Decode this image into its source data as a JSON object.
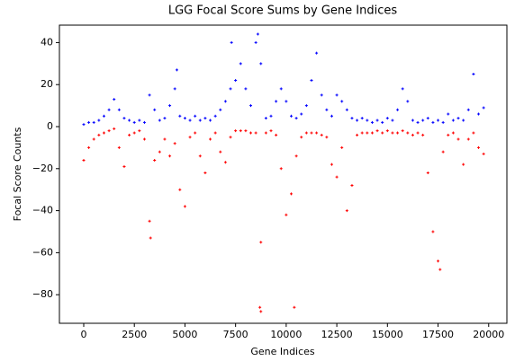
{
  "chart_data": {
    "type": "scatter",
    "title": "LGG Focal Score Sums by Gene Indices",
    "x_label": "Gene Indices",
    "y_label": "Focal Score Counts",
    "xlim": [
      -1200,
      20900
    ],
    "ylim": [
      -93.6,
      48.3
    ],
    "xticks": [
      0,
      2500,
      5000,
      7500,
      10000,
      12500,
      15000,
      17500,
      20000
    ],
    "yticks": [
      {
        "value": -80,
        "label": "−80"
      },
      {
        "value": -60,
        "label": "−60"
      },
      {
        "value": -40,
        "label": "−40"
      },
      {
        "value": -20,
        "label": "−20"
      },
      0,
      20,
      40
    ],
    "series": [
      {
        "color": "#0000ff",
        "x": [
          0,
          250,
          500,
          750,
          1000,
          1250,
          1500,
          1750,
          2000,
          2250,
          2500,
          2750,
          3000,
          3250,
          3500,
          3750,
          4000,
          4250,
          4500,
          4750,
          5000,
          5250,
          5500,
          5750,
          6000,
          6250,
          6500,
          6750,
          7000,
          7250,
          7500,
          7750,
          8000,
          8250,
          8500,
          8750,
          9000,
          9250,
          9500,
          9750,
          10000,
          10250,
          10500,
          10750,
          11000,
          11250,
          11500,
          11750,
          12000,
          12250,
          12500,
          12750,
          13000,
          13250,
          13500,
          13750,
          14000,
          14250,
          14500,
          14750,
          15000,
          15250,
          15500,
          15750,
          16000,
          16250,
          16500,
          16750,
          17000,
          17250,
          17500,
          17750,
          18000,
          18250,
          18500,
          18750,
          19000,
          19250,
          19500,
          19750,
          7300,
          4600,
          8600
        ],
        "values": [
          1,
          2,
          2,
          3,
          5,
          8,
          13,
          8,
          4,
          3,
          2,
          3,
          2,
          15,
          8,
          3,
          4,
          10,
          18,
          5,
          4,
          3,
          5,
          3,
          4,
          3,
          5,
          8,
          12,
          18,
          22,
          30,
          18,
          10,
          40,
          30,
          4,
          5,
          12,
          18,
          12,
          5,
          4,
          6,
          10,
          22,
          35,
          15,
          8,
          5,
          15,
          12,
          8,
          4,
          3,
          4,
          3,
          2,
          3,
          2,
          4,
          3,
          8,
          18,
          12,
          3,
          2,
          3,
          4,
          2,
          3,
          2,
          6,
          3,
          4,
          3,
          8,
          25,
          6,
          9,
          40,
          27,
          44
        ]
      },
      {
        "color": "#ff0000",
        "x": [
          0,
          250,
          500,
          750,
          1000,
          1250,
          1500,
          1750,
          2000,
          2250,
          2500,
          2750,
          3000,
          3250,
          3500,
          3750,
          4000,
          4250,
          4500,
          4750,
          5000,
          5250,
          5500,
          5750,
          6000,
          6250,
          6500,
          6750,
          7000,
          7250,
          7500,
          7750,
          8000,
          8250,
          8500,
          8750,
          9000,
          9250,
          9500,
          9750,
          10000,
          10250,
          10500,
          10750,
          11000,
          11250,
          11500,
          11750,
          12000,
          12250,
          12500,
          12750,
          13000,
          13250,
          13500,
          13750,
          14000,
          14250,
          14500,
          14750,
          15000,
          15250,
          15500,
          15750,
          16000,
          16250,
          16500,
          16750,
          17000,
          17250,
          17500,
          17750,
          18000,
          18250,
          18500,
          18750,
          19000,
          19250,
          19500,
          19750,
          8700,
          8750,
          10400,
          3300,
          17600
        ],
        "values": [
          -16,
          -10,
          -6,
          -4,
          -3,
          -2,
          -1,
          -10,
          -19,
          -4,
          -3,
          -2,
          -6,
          -45,
          -16,
          -12,
          -6,
          -14,
          -8,
          -30,
          -38,
          -5,
          -3,
          -14,
          -22,
          -6,
          -3,
          -12,
          -17,
          -5,
          -2,
          -2,
          -2,
          -3,
          -3,
          -55,
          -3,
          -2,
          -4,
          -20,
          -42,
          -32,
          -14,
          -5,
          -3,
          -3,
          -3,
          -4,
          -5,
          -18,
          -24,
          -10,
          -40,
          -28,
          -4,
          -3,
          -3,
          -3,
          -2,
          -3,
          -2,
          -3,
          -3,
          -2,
          -3,
          -4,
          -3,
          -4,
          -22,
          -50,
          -64,
          -12,
          -4,
          -3,
          -6,
          -18,
          -6,
          -3,
          -10,
          -13,
          -86,
          -88,
          -86,
          -53,
          -68
        ]
      }
    ]
  }
}
